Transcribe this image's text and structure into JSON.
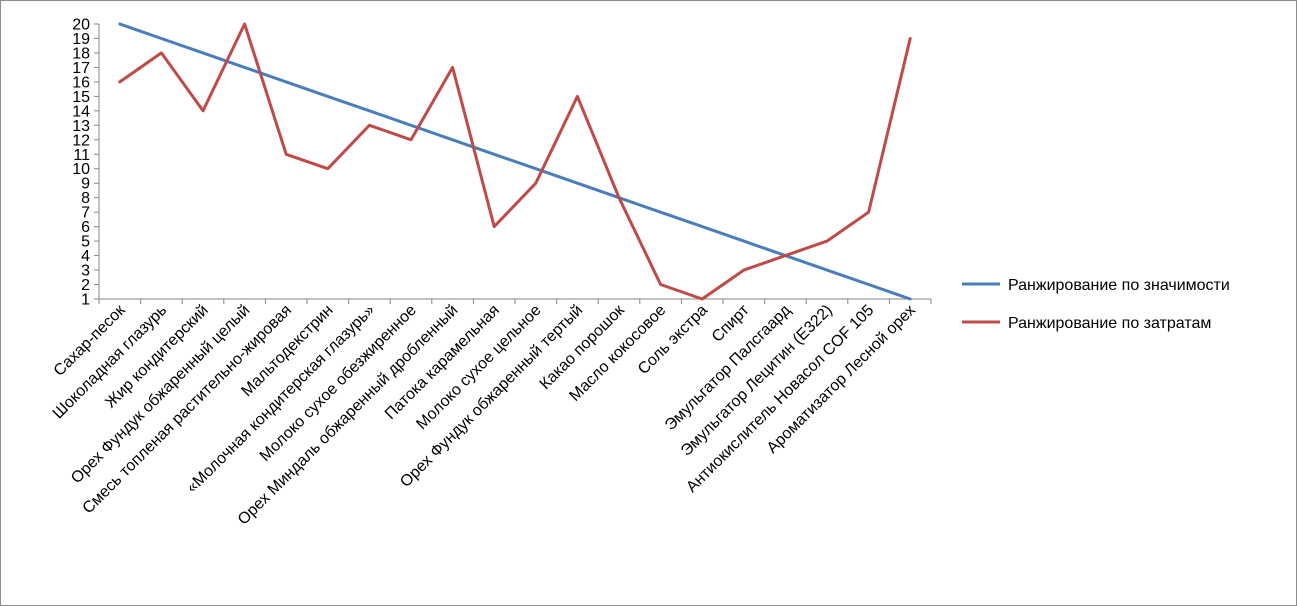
{
  "chart_data": {
    "type": "line",
    "title": "",
    "xlabel": "",
    "ylabel": "",
    "ylim": [
      1,
      20
    ],
    "yticks": [
      1,
      2,
      3,
      4,
      5,
      6,
      7,
      8,
      9,
      10,
      11,
      12,
      13,
      14,
      15,
      16,
      17,
      18,
      19,
      20
    ],
    "grid": false,
    "legend_position": "right",
    "categories": [
      "Сахар-песок",
      "Шоколадная глазурь",
      "Жир кондитерский",
      "Орех Фундук обжаренный целый",
      "Смесь топленая растительно-жировая",
      "Мальтодекстрин",
      "«Молочная кондитерская глазурь»",
      "Молоко сухое обезжиренное",
      "Орех Миндаль обжаренный дробленный",
      "Патока карамельная",
      "Молоко сухое цельное",
      "Орех Фундук обжаренный тертый",
      "Какао порошок",
      "Масло кокосовое",
      "Соль экстра",
      "Спирт",
      "Эмульгатор Палсгаард",
      "Эмульгатор Лецитин (Е322)",
      "Антиокислитель Новасол COF 105",
      "Ароматизатор Лесной орех"
    ],
    "series": [
      {
        "name": "Ранжирование по значимости",
        "color": "#4a7ebb",
        "values": [
          20,
          19,
          18,
          17,
          16,
          15,
          14,
          13,
          12,
          11,
          10,
          9,
          8,
          7,
          6,
          5,
          4,
          3,
          2,
          1
        ]
      },
      {
        "name": "Ранжирование по затратам",
        "color": "#be4b48",
        "values": [
          16,
          18,
          14,
          20,
          11,
          10,
          13,
          12,
          17,
          6,
          9,
          15,
          8,
          2,
          1,
          3,
          4,
          5,
          7,
          19
        ]
      }
    ]
  }
}
